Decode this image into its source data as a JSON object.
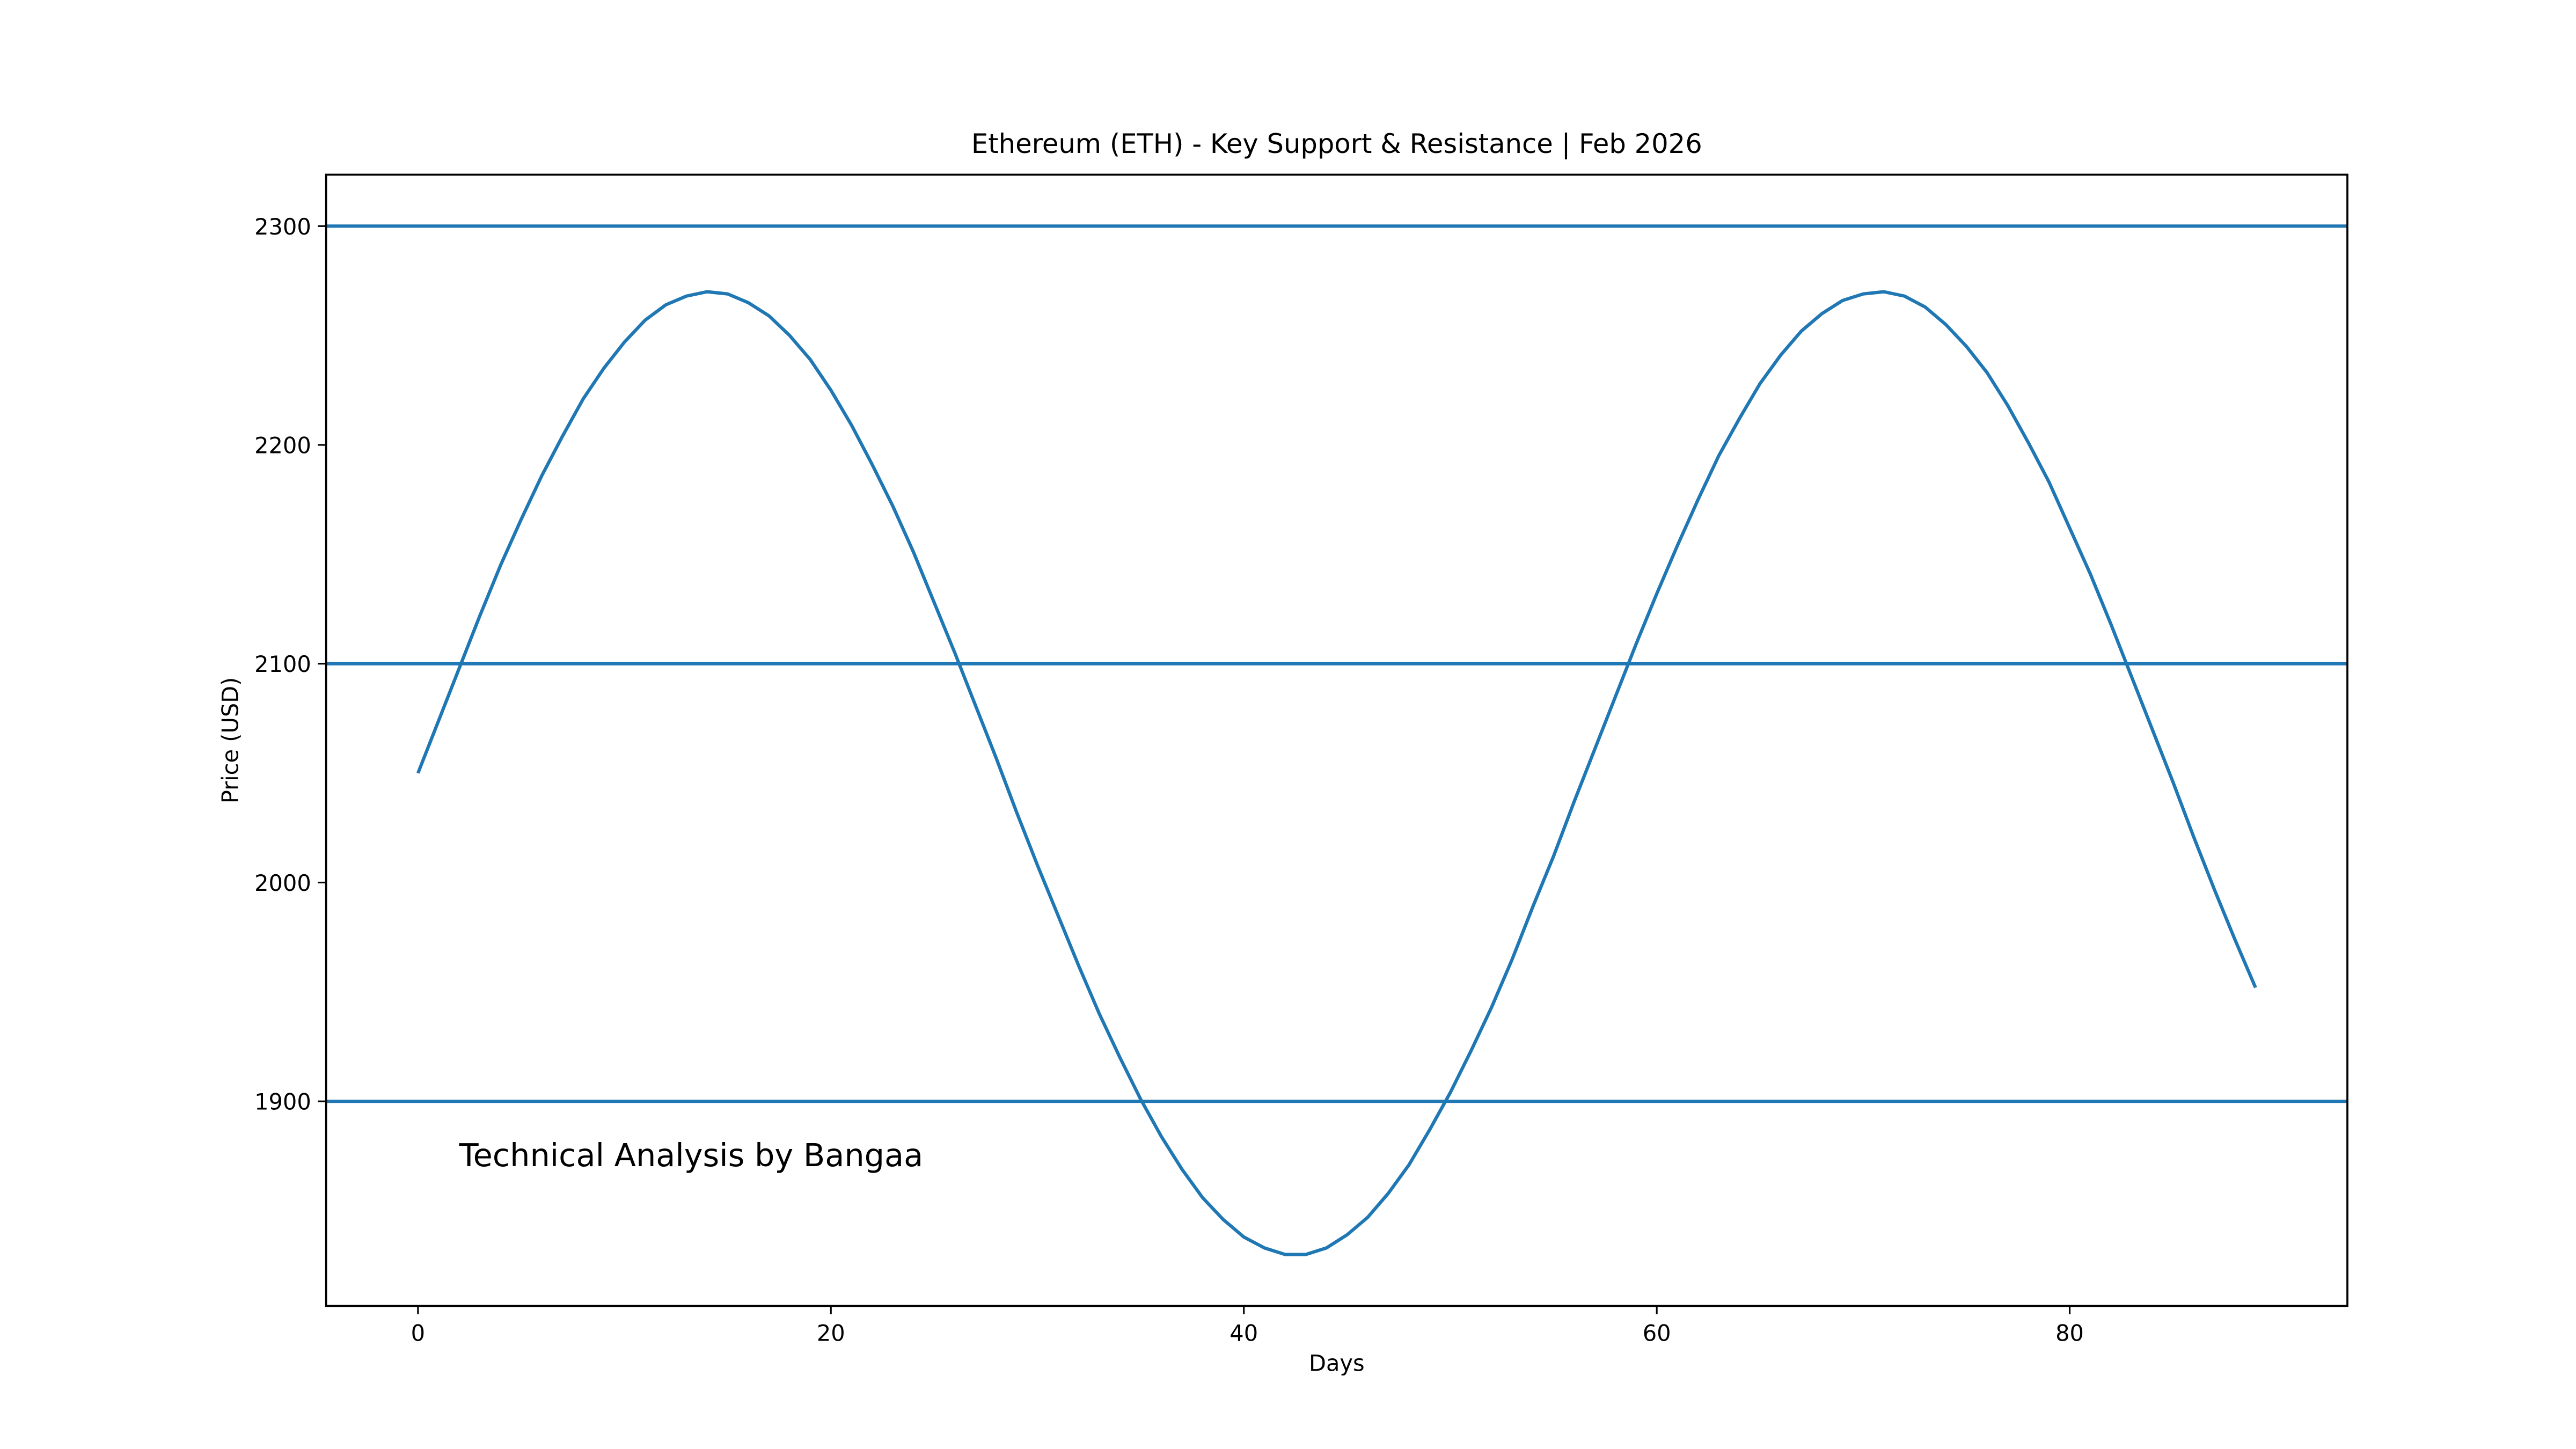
{
  "chart_data": {
    "type": "line",
    "title": "Ethereum (ETH) - Key Support & Resistance | Feb 2026",
    "xlabel": "Days",
    "ylabel": "Price (USD)",
    "annotation": "Technical Analysis by Bangaa",
    "x": [
      0,
      1,
      2,
      3,
      4,
      5,
      6,
      7,
      8,
      9,
      10,
      11,
      12,
      13,
      14,
      15,
      16,
      17,
      18,
      19,
      20,
      21,
      22,
      23,
      24,
      25,
      26,
      27,
      28,
      29,
      30,
      31,
      32,
      33,
      34,
      35,
      36,
      37,
      38,
      39,
      40,
      41,
      42,
      43,
      44,
      45,
      46,
      47,
      48,
      49,
      50,
      51,
      52,
      53,
      54,
      55,
      56,
      57,
      58,
      59,
      60,
      61,
      62,
      63,
      64,
      65,
      66,
      67,
      68,
      69,
      70,
      71,
      72,
      73,
      74,
      75,
      76,
      77,
      78,
      79,
      80,
      81,
      82,
      83,
      84,
      85,
      86,
      87,
      88,
      89
    ],
    "series": [
      {
        "color": "#1f77b4",
        "values": [
          2050,
          2074,
          2098,
          2122,
          2145,
          2166,
          2186,
          2204,
          2221,
          2235,
          2247,
          2257,
          2264,
          2268,
          2270,
          2269,
          2265,
          2259,
          2250,
          2239,
          2225,
          2209,
          2191,
          2172,
          2151,
          2128,
          2105,
          2081,
          2057,
          2032,
          2008,
          1985,
          1962,
          1940,
          1920,
          1901,
          1884,
          1869,
          1856,
          1846,
          1838,
          1833,
          1830,
          1830,
          1833,
          1839,
          1847,
          1858,
          1871,
          1887,
          1904,
          1923,
          1943,
          1965,
          1989,
          2012,
          2037,
          2061,
          2085,
          2109,
          2132,
          2154,
          2175,
          2195,
          2212,
          2228,
          2241,
          2252,
          2260,
          2266,
          2269,
          2270,
          2268,
          2263,
          2255,
          2245,
          2233,
          2218,
          2201,
          2183,
          2162,
          2141,
          2118,
          2094,
          2070,
          2046,
          2021,
          1997,
          1974,
          1952
        ]
      }
    ],
    "hlines": [
      1900,
      2100,
      2300
    ],
    "hline_color": "#1f77b4",
    "xlim": [
      -4.45,
      93.45
    ],
    "ylim": [
      1806.5,
      2323.5
    ],
    "xticks": [
      0,
      20,
      40,
      60,
      80
    ],
    "yticks": [
      1900,
      2000,
      2100,
      2200,
      2300
    ],
    "grid": false
  }
}
